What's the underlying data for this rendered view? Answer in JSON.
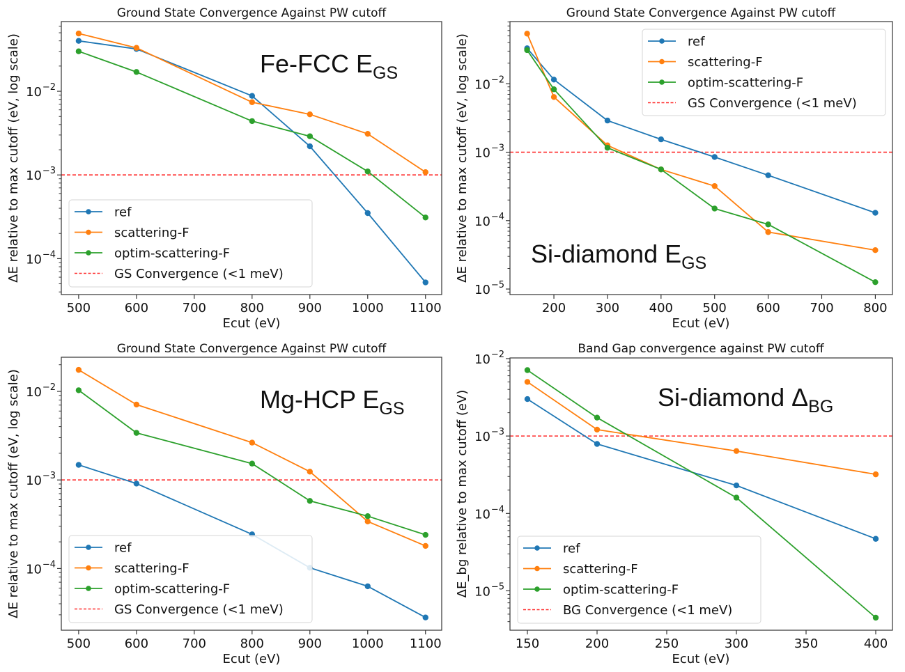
{
  "figure": {
    "panels": [
      "fe-fcc-gs",
      "si-diamond-gs",
      "mg-hcp-gs",
      "si-diamond-bg"
    ]
  },
  "colors": {
    "ref": "#1f77b4",
    "scattering-F": "#ff7f0e",
    "optim-scattering-F": "#2ca02c",
    "threshold": "#ff2a2a"
  },
  "chart_data": [
    {
      "id": "fe-fcc-gs",
      "type": "line",
      "title": "Ground State Convergence Against PW cutoff",
      "xlabel": "Ecut (eV)",
      "ylabel": "ΔE relative to max cutoff (eV, log scale)",
      "yscale": "log",
      "annotation": {
        "main": "Fe-FCC E",
        "sub": "GS"
      },
      "annotation_placement": "top-right",
      "legend_placement": "lower-left",
      "xlim": [
        470,
        1128
      ],
      "ylim": [
        3.72e-05,
        0.068
      ],
      "xticks": [
        500,
        600,
        700,
        800,
        900,
        1000,
        1100
      ],
      "yticks": [
        {
          "value": 0.01,
          "label_base": "10",
          "label_exp": "−2"
        },
        {
          "value": 0.001,
          "label_base": "10",
          "label_exp": "−3"
        },
        {
          "value": 0.0001,
          "label_base": "10",
          "label_exp": "−4"
        }
      ],
      "threshold": {
        "value": 0.001,
        "label": "GS Convergence (<1 meV)"
      },
      "series": [
        {
          "name": "ref",
          "x": [
            500,
            600,
            800,
            900,
            1000,
            1100
          ],
          "y": [
            0.04,
            0.032,
            0.0088,
            0.0022,
            0.00035,
            5.2e-05
          ]
        },
        {
          "name": "scattering-F",
          "x": [
            500,
            600,
            800,
            900,
            1000,
            1100
          ],
          "y": [
            0.049,
            0.033,
            0.0074,
            0.0053,
            0.0031,
            0.00108
          ]
        },
        {
          "name": "optim-scattering-F",
          "x": [
            500,
            600,
            800,
            900,
            1000,
            1100
          ],
          "y": [
            0.03,
            0.017,
            0.0044,
            0.0029,
            0.0011,
            0.00031
          ]
        }
      ]
    },
    {
      "id": "si-diamond-gs",
      "type": "line",
      "title": "Ground State Convergence Against PW cutoff",
      "xlabel": "Ecut (eV)",
      "ylabel": "ΔE relative to max cutoff (eV, log scale)",
      "yscale": "log",
      "annotation": {
        "main": "Si-diamond E",
        "sub": "GS"
      },
      "annotation_placement": "bottom-left",
      "legend_placement": "top-right",
      "xlim": [
        118,
        832
      ],
      "ylim": [
        8.3e-06,
        0.081
      ],
      "xticks": [
        200,
        300,
        400,
        500,
        600,
        700,
        800
      ],
      "yticks": [
        {
          "value": 0.01,
          "label_base": "10",
          "label_exp": "−2"
        },
        {
          "value": 0.001,
          "label_base": "10",
          "label_exp": "−3"
        },
        {
          "value": 0.0001,
          "label_base": "10",
          "label_exp": "−4"
        },
        {
          "value": 1e-05,
          "label_base": "10",
          "label_exp": "−5"
        }
      ],
      "threshold": {
        "value": 0.001,
        "label": "GS Convergence (<1 meV)"
      },
      "series": [
        {
          "name": "ref",
          "x": [
            150,
            200,
            300,
            400,
            500,
            600,
            800
          ],
          "y": [
            0.033,
            0.0115,
            0.0029,
            0.00154,
            0.00085,
            0.00046,
            0.00013
          ]
        },
        {
          "name": "scattering-F",
          "x": [
            150,
            200,
            300,
            400,
            500,
            600,
            800
          ],
          "y": [
            0.054,
            0.0064,
            0.00126,
            0.00056,
            0.00032,
            6.8e-05,
            3.7e-05
          ]
        },
        {
          "name": "optim-scattering-F",
          "x": [
            150,
            200,
            300,
            400,
            500,
            600,
            800
          ],
          "y": [
            0.031,
            0.0083,
            0.00116,
            0.00056,
            0.00015,
            8.8e-05,
            1.26e-05
          ]
        }
      ]
    },
    {
      "id": "mg-hcp-gs",
      "type": "line",
      "title": "Ground State Convergence Against PW cutoff",
      "xlabel": "Ecut (eV)",
      "ylabel": "ΔE relative to max cutoff (eV, log scale)",
      "yscale": "log",
      "annotation": {
        "main": "Mg-HCP E",
        "sub": "GS"
      },
      "annotation_placement": "top-right",
      "legend_placement": "lower-left",
      "xlim": [
        470,
        1128
      ],
      "ylim": [
        2.01e-05,
        0.0243
      ],
      "xticks": [
        500,
        600,
        700,
        800,
        900,
        1000,
        1100
      ],
      "yticks": [
        {
          "value": 0.01,
          "label_base": "10",
          "label_exp": "−2"
        },
        {
          "value": 0.001,
          "label_base": "10",
          "label_exp": "−3"
        },
        {
          "value": 0.0001,
          "label_base": "10",
          "label_exp": "−4"
        }
      ],
      "threshold": {
        "value": 0.001,
        "label": "GS Convergence (<1 meV)"
      },
      "series": [
        {
          "name": "ref",
          "x": [
            500,
            600,
            800,
            900,
            1000,
            1100
          ],
          "y": [
            0.00148,
            0.00091,
            0.000243,
            0.000102,
            6.3e-05,
            2.8e-05
          ]
        },
        {
          "name": "scattering-F",
          "x": [
            500,
            600,
            800,
            900,
            1000,
            1100
          ],
          "y": [
            0.0175,
            0.0071,
            0.00264,
            0.00124,
            0.00034,
            0.00018
          ]
        },
        {
          "name": "optim-scattering-F",
          "x": [
            500,
            600,
            800,
            900,
            1000,
            1100
          ],
          "y": [
            0.0103,
            0.0034,
            0.00153,
            0.00058,
            0.00039,
            0.00024
          ]
        }
      ]
    },
    {
      "id": "si-diamond-bg",
      "type": "line",
      "title": "Band Gap convergence against PW cutoff",
      "xlabel": "Ecut (eV)",
      "ylabel": "ΔE_bg relative to max cutoff (eV)",
      "yscale": "log",
      "annotation": {
        "main": "Si-diamond Δ",
        "sub": "BG"
      },
      "annotation_placement": "top-right",
      "legend_placement": "lower-left",
      "xlim": [
        137.5,
        412
      ],
      "ylim": [
        3.1e-06,
        0.0102
      ],
      "xticks": [
        150,
        200,
        250,
        300,
        350,
        400
      ],
      "yticks": [
        {
          "value": 0.01,
          "label_base": "10",
          "label_exp": "−2"
        },
        {
          "value": 0.001,
          "label_base": "10",
          "label_exp": "−3"
        },
        {
          "value": 0.0001,
          "label_base": "10",
          "label_exp": "−4"
        },
        {
          "value": 1e-05,
          "label_base": "10",
          "label_exp": "−5"
        }
      ],
      "threshold": {
        "value": 0.001,
        "label": "BG Convergence (<1 meV)"
      },
      "series": [
        {
          "name": "ref",
          "x": [
            150,
            200,
            300,
            400
          ],
          "y": [
            0.003,
            0.00079,
            0.00023,
            4.7e-05
          ]
        },
        {
          "name": "scattering-F",
          "x": [
            150,
            200,
            300,
            400
          ],
          "y": [
            0.005,
            0.00121,
            0.00064,
            0.00032
          ]
        },
        {
          "name": "optim-scattering-F",
          "x": [
            150,
            200,
            300,
            400
          ],
          "y": [
            0.0071,
            0.00173,
            0.00016,
            4.5e-06
          ]
        }
      ]
    }
  ]
}
